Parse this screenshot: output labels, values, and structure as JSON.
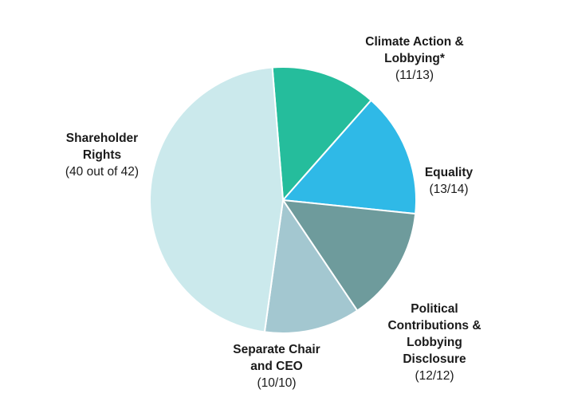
{
  "chart_data": {
    "type": "pie",
    "title": "",
    "start_angle_deg": -4.6,
    "direction": "clockwise",
    "slices": [
      {
        "name": "Climate Action & Lobbying*",
        "label_lines": [
          "Climate Action &",
          "Lobbying*"
        ],
        "count_label": "(11/13)",
        "value": 11,
        "total": 13,
        "color": "#25bd9c"
      },
      {
        "name": "Equality",
        "label_lines": [
          "Equality"
        ],
        "count_label": "(13/14)",
        "value": 13,
        "total": 14,
        "color": "#2fb9e7"
      },
      {
        "name": "Political Contributions & Lobbying Disclosure",
        "label_lines": [
          "Political",
          "Contributions &",
          "Lobbying",
          "Disclosure"
        ],
        "count_label": "(12/12)",
        "value": 12,
        "total": 12,
        "color": "#6e9b9c"
      },
      {
        "name": "Separate Chair and CEO",
        "label_lines": [
          "Separate Chair",
          "and CEO"
        ],
        "count_label": "(10/10)",
        "value": 10,
        "total": 10,
        "color": "#a3c7d0"
      },
      {
        "name": "Shareholder Rights",
        "label_lines": [
          "Shareholder",
          "Rights"
        ],
        "count_label": "(40 out of 42)",
        "value": 40,
        "total": 42,
        "color": "#cbe9ec"
      }
    ]
  }
}
